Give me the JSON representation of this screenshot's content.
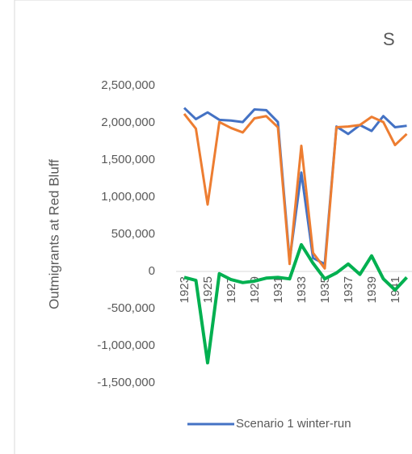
{
  "chart_data": {
    "type": "line",
    "title": "S",
    "y_label": "Outmigrants at Red Bluff",
    "categories": [
      "1923",
      null,
      "1925",
      null,
      "1927",
      null,
      "1929",
      null,
      "1931",
      null,
      "1933",
      null,
      "1935",
      null,
      "1937",
      null,
      "1939",
      null,
      "1941",
      null
    ],
    "series": [
      {
        "name": "Scenario 1 winter-run",
        "color": "#4472c4",
        "values": [
          2200000,
          2050000,
          2140000,
          2040000,
          2030000,
          2010000,
          2180000,
          2170000,
          2010000,
          150000,
          1330000,
          180000,
          100000,
          1950000,
          1850000,
          1970000,
          1890000,
          2090000,
          1940000,
          1960000
        ]
      },
      {
        "color": "#ed7d31",
        "values": [
          2120000,
          1920000,
          900000,
          2010000,
          1930000,
          1870000,
          2060000,
          2090000,
          1940000,
          100000,
          1690000,
          250000,
          40000,
          1940000,
          1950000,
          1970000,
          2080000,
          2010000,
          1700000,
          1850000
        ]
      },
      {
        "color": "#00b050",
        "values": [
          -80000,
          -120000,
          -1230000,
          -30000,
          -110000,
          -150000,
          -130000,
          -90000,
          -80000,
          -100000,
          360000,
          110000,
          -100000,
          -20000,
          100000,
          -40000,
          210000,
          -100000,
          -250000,
          -80000
        ]
      }
    ],
    "ylim": [
      -2000000,
      2500000
    ],
    "yticks": [
      {
        "value": -1500000,
        "label": "-1,500,000"
      },
      {
        "value": -1000000,
        "label": "-1,000,000"
      },
      {
        "value": -500000,
        "label": "-500,000"
      },
      0,
      {
        "value": 500000,
        "label": "500,000"
      },
      {
        "value": 1000000,
        "label": "1,000,000"
      },
      {
        "value": 1500000,
        "label": "1,500,000"
      },
      {
        "value": 2000000,
        "label": "2,000,000"
      },
      {
        "value": 2500000,
        "label": "2,500,000"
      }
    ],
    "grid": false
  }
}
